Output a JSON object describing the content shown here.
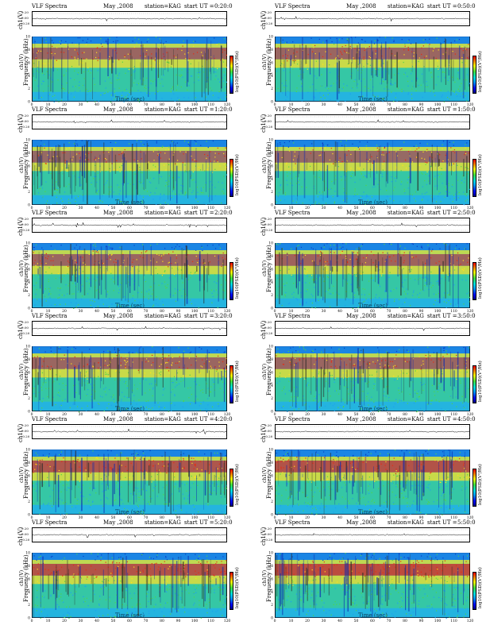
{
  "figure": {
    "title_left": "VLF Spectra",
    "date_label": "May ,2008",
    "station_label": "station=KAG",
    "start_prefix": "start  UT  =",
    "waveform_axis_label": "ch1(V)",
    "waveform_ticks": [
      "0.20",
      "0.00",
      "-0.20"
    ],
    "frequency_axis_label": "Frequency (kHz)",
    "frequency_ticks": [
      "0",
      "2",
      "4",
      "6",
      "8",
      "10"
    ],
    "time_axis_label": "Time (sec)",
    "time_ticks": [
      "0",
      "10",
      "20",
      "30",
      "40",
      "50",
      "60",
      "70",
      "80",
      "90",
      "100",
      "110",
      "120"
    ],
    "colorbar_label": "log10(PSD)(V²/Hz)",
    "colorbar_ends": [
      "-",
      "-"
    ]
  },
  "panels": [
    {
      "start_time": "0:20:0",
      "intensity": 0.5
    },
    {
      "start_time": "0:50:0",
      "intensity": 0.5
    },
    {
      "start_time": "1:20:0",
      "intensity": 0.45
    },
    {
      "start_time": "1:50:0",
      "intensity": 0.45
    },
    {
      "start_time": "2:20:0",
      "intensity": 0.5
    },
    {
      "start_time": "2:50:0",
      "intensity": 0.55
    },
    {
      "start_time": "3:20:0",
      "intensity": 0.5
    },
    {
      "start_time": "3:50:0",
      "intensity": 0.5
    },
    {
      "start_time": "4:20:0",
      "intensity": 0.7
    },
    {
      "start_time": "4:50:0",
      "intensity": 0.75
    },
    {
      "start_time": "5:20:0",
      "intensity": 0.75
    },
    {
      "start_time": "5:50:0",
      "intensity": 0.85
    }
  ],
  "colors": {
    "background": "#27c1d6",
    "low_band": "#1f9ff0",
    "mid_band": "#4fd44a",
    "high_band": "#ffe21a",
    "peak_band": "#e82a12",
    "top_band": "#1a7ee6"
  },
  "chart_data": {
    "type": "heatmap",
    "x_axis": {
      "label": "Time (sec)",
      "range": [
        0,
        120
      ]
    },
    "y_axis": {
      "label": "Frequency (kHz)",
      "range": [
        0,
        10
      ]
    },
    "colorbar": {
      "label": "log10(PSD)(V²/Hz)"
    },
    "waveform": {
      "label": "ch1(V)",
      "range": [
        -0.2,
        0.2
      ]
    },
    "panel_count": 12,
    "grid": false
  }
}
